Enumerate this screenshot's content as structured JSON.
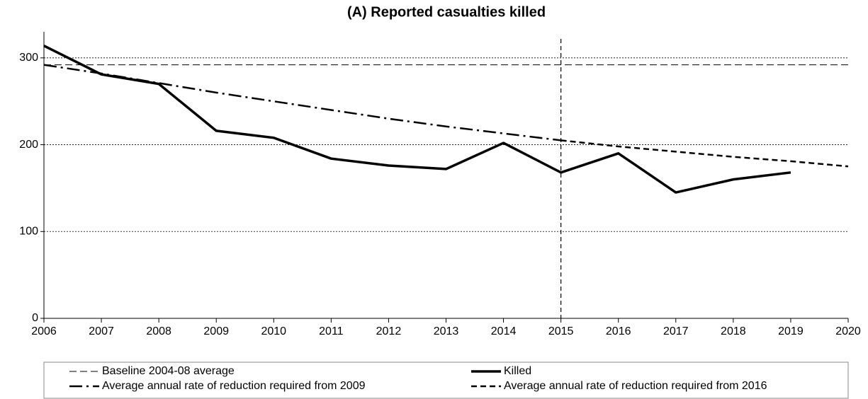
{
  "chart_data": {
    "type": "line",
    "title": "(A) Reported casualties killed",
    "x": [
      2006,
      2007,
      2008,
      2009,
      2010,
      2011,
      2012,
      2013,
      2014,
      2015,
      2016,
      2017,
      2018,
      2019,
      2020
    ],
    "series": [
      {
        "name": "Baseline 2004-08 average",
        "color": "#000000",
        "dash": "10,5",
        "width": 1,
        "values": [
          292,
          292,
          292,
          292,
          292,
          292,
          292,
          292,
          292,
          292,
          292,
          292,
          292,
          292,
          292
        ]
      },
      {
        "name": "Killed",
        "color": "#000000",
        "dash": "none",
        "width": 3.5,
        "values": [
          314,
          281,
          270,
          216,
          208,
          184,
          176,
          172,
          202,
          168,
          190,
          145,
          160,
          168,
          null
        ]
      },
      {
        "name": "Average annual rate of reduction required from 2009",
        "color": "#000000",
        "dash": "18,6,3,6",
        "width": 2.5,
        "values": [
          292,
          282,
          271,
          260,
          250,
          240,
          230,
          221,
          213,
          205,
          null,
          null,
          null,
          null,
          null
        ]
      },
      {
        "name": "Average annual rate of reduction required from 2016",
        "color": "#000000",
        "dash": "8,5",
        "width": 2.5,
        "values": [
          null,
          null,
          null,
          null,
          null,
          null,
          null,
          null,
          null,
          205,
          198,
          192,
          186,
          181,
          175
        ]
      }
    ],
    "vline_x": 2015,
    "xlim": [
      2006,
      2020
    ],
    "xticks": [
      2006,
      2007,
      2008,
      2009,
      2010,
      2011,
      2012,
      2013,
      2014,
      2015,
      2016,
      2017,
      2018,
      2019,
      2020
    ],
    "ylim": [
      0,
      330
    ],
    "yticks": [
      0,
      100,
      200,
      300
    ],
    "grid": true,
    "legend": "bottom"
  }
}
